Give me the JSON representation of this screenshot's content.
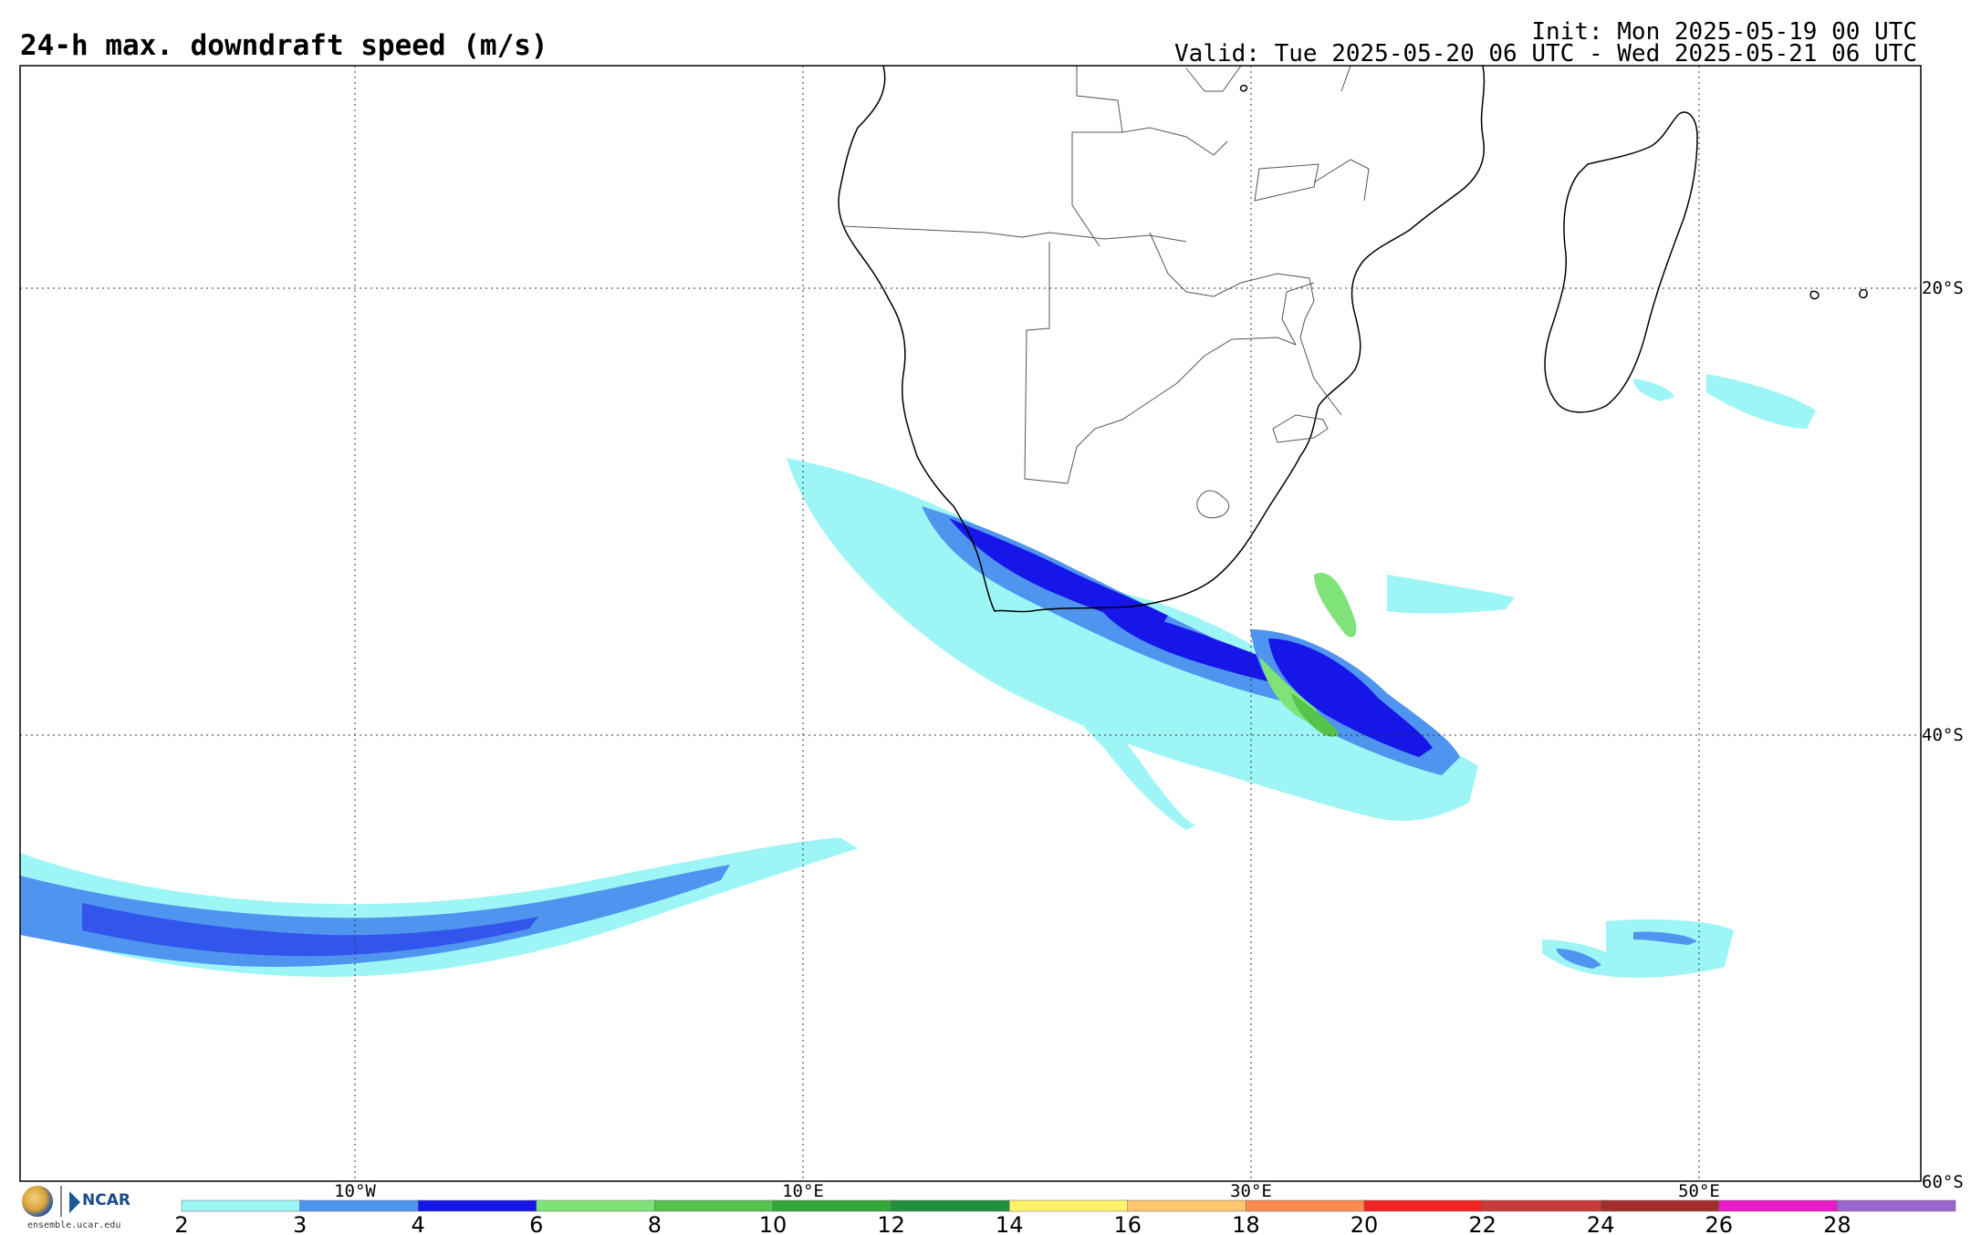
{
  "header": {
    "title": "24-h max. downdraft speed (m/s)",
    "init": "Init: Mon 2025-05-19 00 UTC",
    "valid": "Valid: Tue 2025-05-20 06 UTC - Wed 2025-05-21 06 UTC"
  },
  "map": {
    "lat_labels": [
      "20°S",
      "40°S",
      "60°S"
    ],
    "lon_labels": [
      "10°W",
      "10°E",
      "30°E",
      "50°E"
    ],
    "land_regions": [
      "southern Africa",
      "Madagascar"
    ],
    "field": "downdraft speed"
  },
  "colorbar": {
    "ticks": [
      "2",
      "3",
      "4",
      "6",
      "8",
      "10",
      "12",
      "14",
      "16",
      "18",
      "20",
      "22",
      "24",
      "26",
      "28"
    ],
    "colors": [
      "#9ef5f5",
      "#4f94ef",
      "#1616e8",
      "#7fe37a",
      "#56c44c",
      "#34a63a",
      "#218e3c",
      "#fff46a",
      "#ffc56f",
      "#ff8c4f",
      "#f02424",
      "#c83b3b",
      "#a22d2d",
      "#e81cc8",
      "#9966cc"
    ]
  },
  "logo": {
    "org_text": "NCAR",
    "url": "ensemble.ucar.edu"
  }
}
